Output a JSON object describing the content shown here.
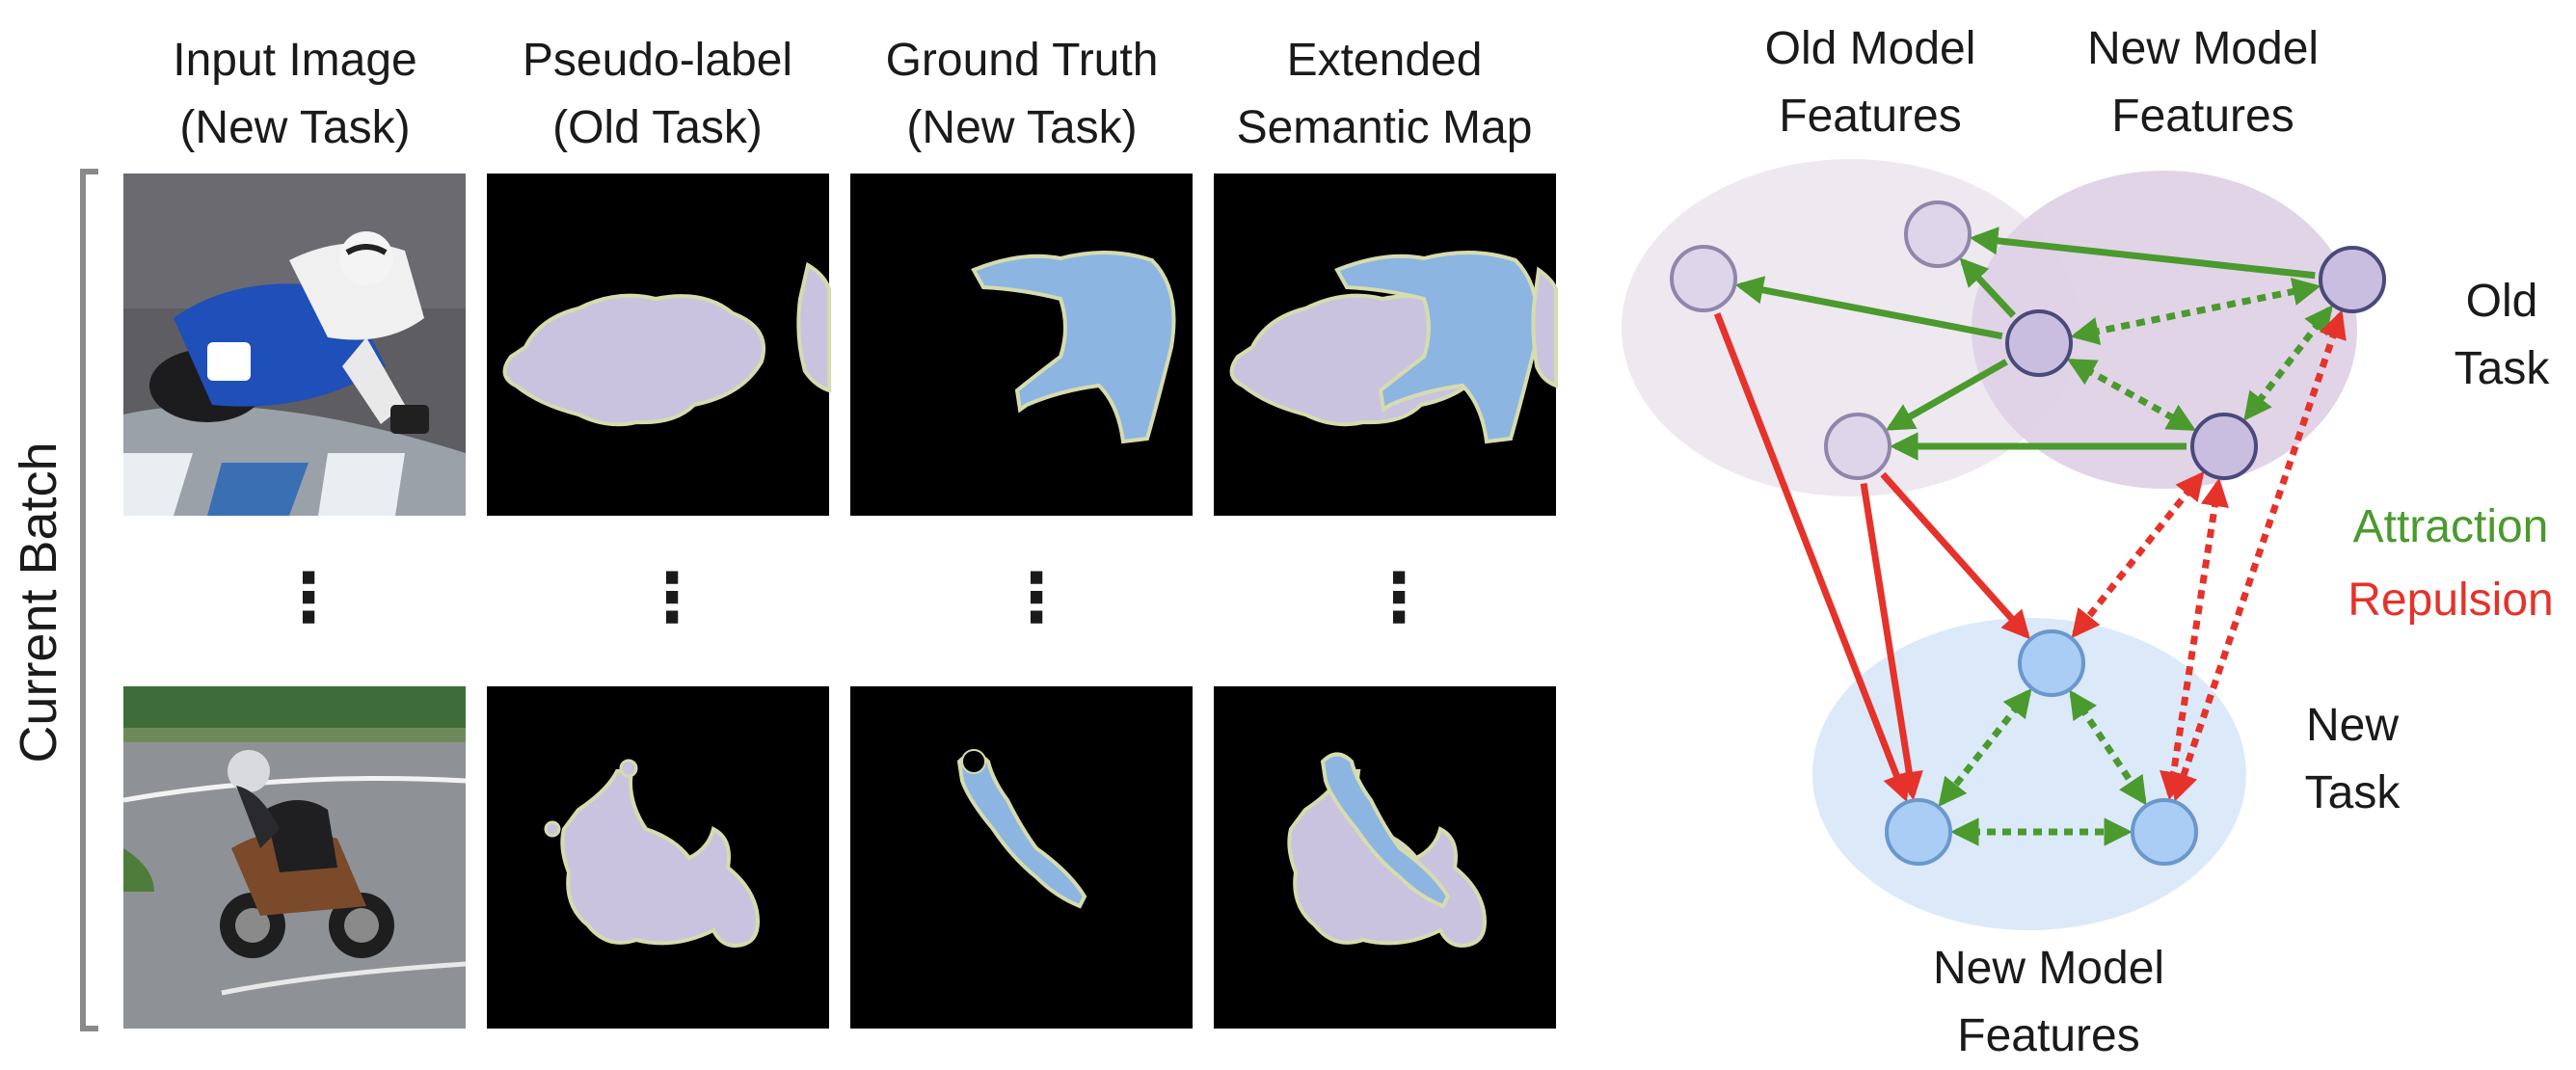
{
  "columns": [
    {
      "line1": "Input Image",
      "line2": "(New Task)"
    },
    {
      "line1": "Pseudo-label",
      "line2": "(Old Task)"
    },
    {
      "line1": "Ground Truth",
      "line2": "(New Task)"
    },
    {
      "line1": "Extended",
      "line2": "Semantic Map"
    }
  ],
  "batch_label": "Current Batch",
  "ellipsis": "⋮",
  "diagram": {
    "old_model_features": {
      "line1": "Old Model",
      "line2": "Features"
    },
    "new_model_features_top": {
      "line1": "New Model",
      "line2": "Features"
    },
    "new_model_features_bottom": {
      "line1": "New Model",
      "line2": "Features"
    },
    "old_task": {
      "line1": "Old",
      "line2": "Task"
    },
    "new_task": {
      "line1": "New",
      "line2": "Task"
    },
    "legend": {
      "attraction": "Attraction",
      "repulsion": "Repulsion"
    }
  },
  "colors": {
    "attraction": "#4a9a2e",
    "repulsion": "#e5322a",
    "pseudo_label": "#c9c3e0",
    "ground_truth": "#8db5e2",
    "old_node": "#ddd6ea",
    "new_old_node": "#c9bedf",
    "new_node": "#a9cdf5"
  }
}
